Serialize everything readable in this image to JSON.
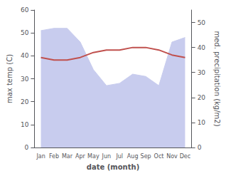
{
  "chart_data": {
    "type": "line",
    "categories": [
      "Jan",
      "Feb",
      "Mar",
      "Apr",
      "May",
      "Jun",
      "Jul",
      "Aug",
      "Sep",
      "Oct",
      "Nov",
      "Dec"
    ],
    "series": [
      {
        "type": "area",
        "color": "#c8ccee",
        "values": [
          51,
          52,
          52,
          46,
          34,
          27,
          28,
          32,
          31,
          27,
          46,
          48
        ]
      },
      {
        "type": "line",
        "color": "#c0504d",
        "axis": "y2",
        "values": [
          36,
          35,
          35,
          36,
          38,
          39,
          39,
          40,
          40,
          39,
          37,
          36
        ]
      }
    ],
    "xlabel": "date (month)",
    "ylabel": "max temp (C)",
    "y2label": "med. precipitation (kg/m2)",
    "ylim": [
      0,
      60
    ],
    "yticks": [
      0,
      10,
      20,
      30,
      40,
      50,
      60
    ],
    "y2lim": [
      0,
      55
    ],
    "y2ticks": [
      0,
      10,
      20,
      30,
      40,
      50
    ],
    "grid": false
  }
}
